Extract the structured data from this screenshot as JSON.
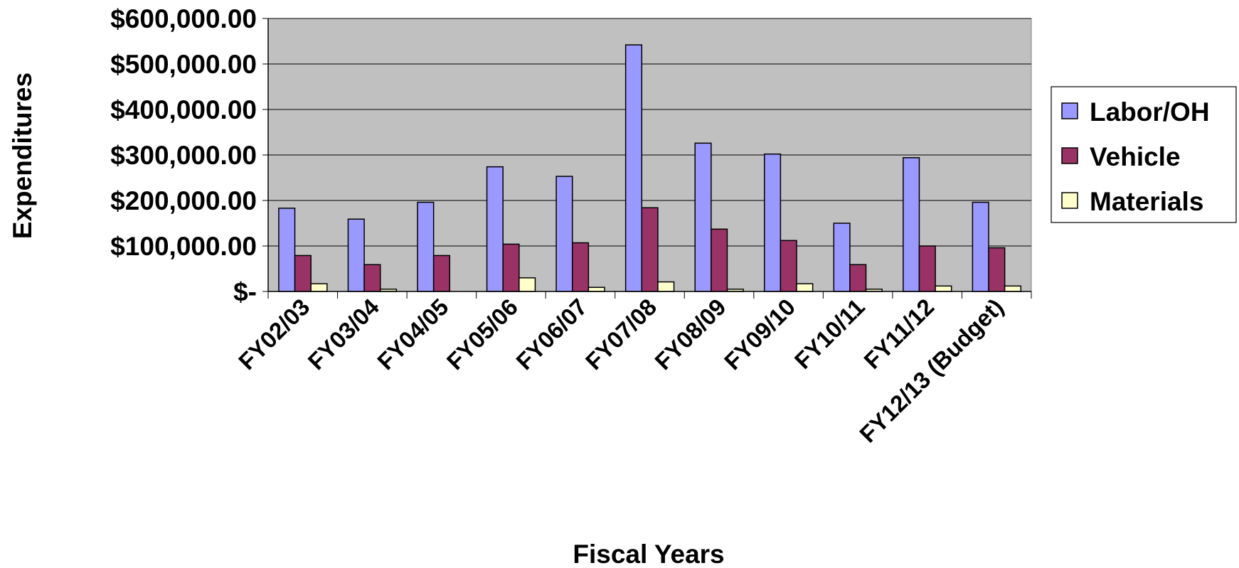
{
  "chart_data": {
    "type": "bar",
    "title": "",
    "xlabel": "Fiscal Years",
    "ylabel": "Expenditures",
    "categories": [
      "FY02/03",
      "FY03/04",
      "FY04/05",
      "FY05/06",
      "FY06/07",
      "FY07/08",
      "FY08/09",
      "FY09/10",
      "FY10/11",
      "FY11/12",
      "FY12/13 (Budget)"
    ],
    "series": [
      {
        "name": "Labor/OH",
        "color": "#9999ff",
        "values": [
          183000,
          159000,
          196000,
          274000,
          253000,
          542000,
          326000,
          302000,
          150000,
          294000,
          196000
        ]
      },
      {
        "name": "Vehicle",
        "color": "#993366",
        "values": [
          79000,
          59000,
          79000,
          104000,
          107000,
          184000,
          137000,
          112000,
          59000,
          100000,
          96000
        ]
      },
      {
        "name": "Materials",
        "color": "#ffffcc",
        "values": [
          17000,
          5000,
          0,
          30000,
          9000,
          21000,
          5000,
          17000,
          5000,
          12000,
          12000
        ]
      }
    ],
    "ylim": [
      0,
      600000
    ],
    "yticks": [
      0,
      100000,
      200000,
      300000,
      400000,
      500000,
      600000
    ],
    "ytick_labels": [
      "$-",
      "$100,000.00",
      "$200,000.00",
      "$300,000.00",
      "$400,000.00",
      "$500,000.00",
      "$600,000.00"
    ],
    "plot_background": "#c0c0c0",
    "grid": true,
    "legend_position": "right"
  }
}
